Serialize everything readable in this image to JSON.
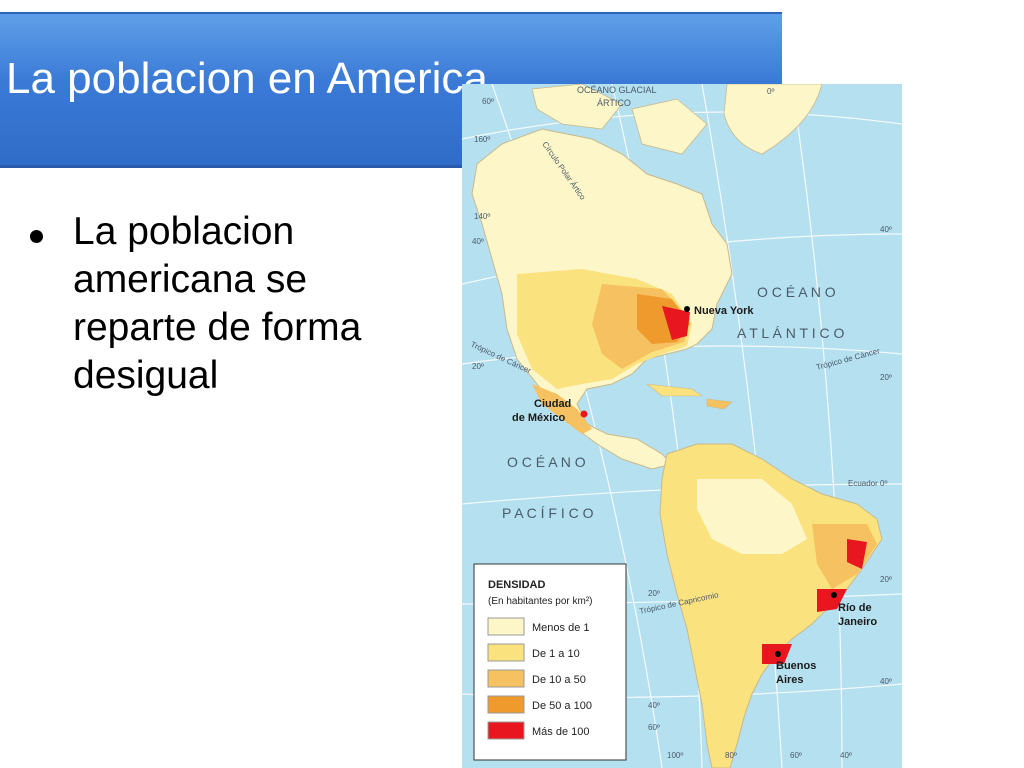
{
  "slide": {
    "title": "La poblacion en America",
    "bullet": "La poblacion americana se reparte de forma desigual"
  },
  "map": {
    "ocean_labels": {
      "arctic_1": "OCÉANO GLACIAL",
      "arctic_2": "ÁRTICO",
      "atlantic_1": "O C É A N O",
      "atlantic_2": "A T L Á N T I C O",
      "pacific_1": "O C É A N O",
      "pacific_2": "P A C Í F I C O"
    },
    "lines": {
      "polar_circle": "Círculo Polar Ártico",
      "cancer_left": "Trópico de Cáncer",
      "cancer_right": "Trópico de Cáncer",
      "equator": "Ecuador 0º",
      "capricorn": "Trópico de Capricornio"
    },
    "coords": {
      "c60_top": "60º",
      "c0_top": "0º",
      "c160": "160º",
      "c140": "140º",
      "c40_left": "40º",
      "c40_right_top": "40º",
      "c20_left": "20º",
      "c20_right": "20º",
      "c20_south_a": "20º",
      "c20_south_b": "20º",
      "c40_south": "40º",
      "c40_south_left": "40º",
      "c60_south": "60º",
      "c100_bottom": "100º",
      "c80_bottom": "80º",
      "c60_bottom": "60º",
      "c40_bottom": "40º"
    },
    "cities": {
      "new_york": "Nueva York",
      "mexico_1": "Ciudad",
      "mexico_2": "de México",
      "rio_1": "Río de",
      "rio_2": "Janeiro",
      "buenos_1": "Buenos",
      "buenos_2": "Aires"
    },
    "legend": {
      "title": "DENSIDAD",
      "subtitle": "(En habitantes por km²)",
      "items": [
        {
          "label": "Menos de 1",
          "color": "#fdf6c8"
        },
        {
          "label": "De 1 a 10",
          "color": "#fae27e"
        },
        {
          "label": "De 10 a 50",
          "color": "#f6c160"
        },
        {
          "label": "De 50 a 100",
          "color": "#ef9a2c"
        },
        {
          "label": "Más de 100",
          "color": "#e8171f"
        }
      ]
    },
    "colors": {
      "ocean": "#b5e0ef",
      "land_low": "#fdf6c8",
      "land_mid": "#fae27e",
      "land_high": "#f6c160",
      "land_dense": "#ef9a2c",
      "land_max": "#e8171f"
    }
  }
}
